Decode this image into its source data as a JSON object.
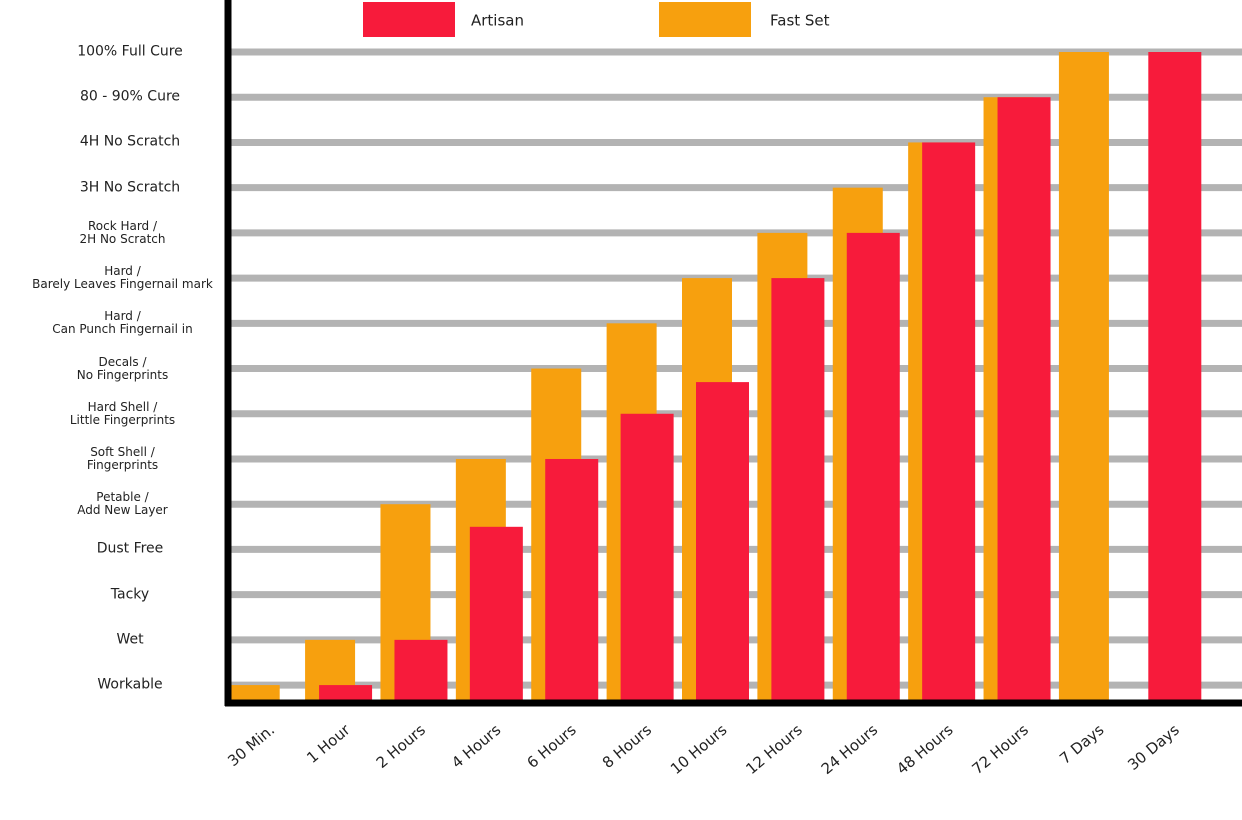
{
  "chart_data": {
    "type": "bar",
    "categories": [
      "30 Min.",
      "1 Hour",
      "2 Hours",
      "4 Hours",
      "6 Hours",
      "8 Hours",
      "10 Hours",
      "12 Hours",
      "24 Hours",
      "48 Hours",
      "72 Hours",
      "7 Days",
      "30 Days"
    ],
    "series": [
      {
        "name": "Fast Set",
        "color": "#f7a00e",
        "values": [
          1,
          2,
          5,
          6,
          8,
          9,
          10,
          11,
          12,
          13,
          14,
          15,
          null
        ]
      },
      {
        "name": "Artisan",
        "color": "#f71b3b",
        "values": [
          null,
          1,
          2,
          4.5,
          6,
          7,
          7.7,
          10,
          11,
          13,
          14,
          null,
          15
        ]
      }
    ],
    "ylim": [
      0.67,
      16.15
    ],
    "yticks": [
      {
        "value": 1,
        "label": "Workable"
      },
      {
        "value": 2,
        "label": "Wet"
      },
      {
        "value": 3,
        "label": "Tacky"
      },
      {
        "value": 4,
        "label": "Dust Free"
      },
      {
        "value": 5,
        "label": "Petable /\nAdd New Layer"
      },
      {
        "value": 6,
        "label": "Soft Shell /\nFingerprints"
      },
      {
        "value": 7,
        "label": "Hard Shell /\nLittle Fingerprints"
      },
      {
        "value": 8,
        "label": "Decals /\nNo Fingerprints"
      },
      {
        "value": 9,
        "label": "Hard /\nCan Punch Fingernail in"
      },
      {
        "value": 10,
        "label": "Hard /\nBarely Leaves Fingernail mark"
      },
      {
        "value": 11,
        "label": "Rock Hard /\n2H No Scratch"
      },
      {
        "value": 12,
        "label": "3H No Scratch"
      },
      {
        "value": 13,
        "label": "4H No Scratch"
      },
      {
        "value": 14,
        "label": "80 - 90% Cure"
      },
      {
        "value": 15,
        "label": "100% Full Cure"
      }
    ],
    "grid": true
  }
}
